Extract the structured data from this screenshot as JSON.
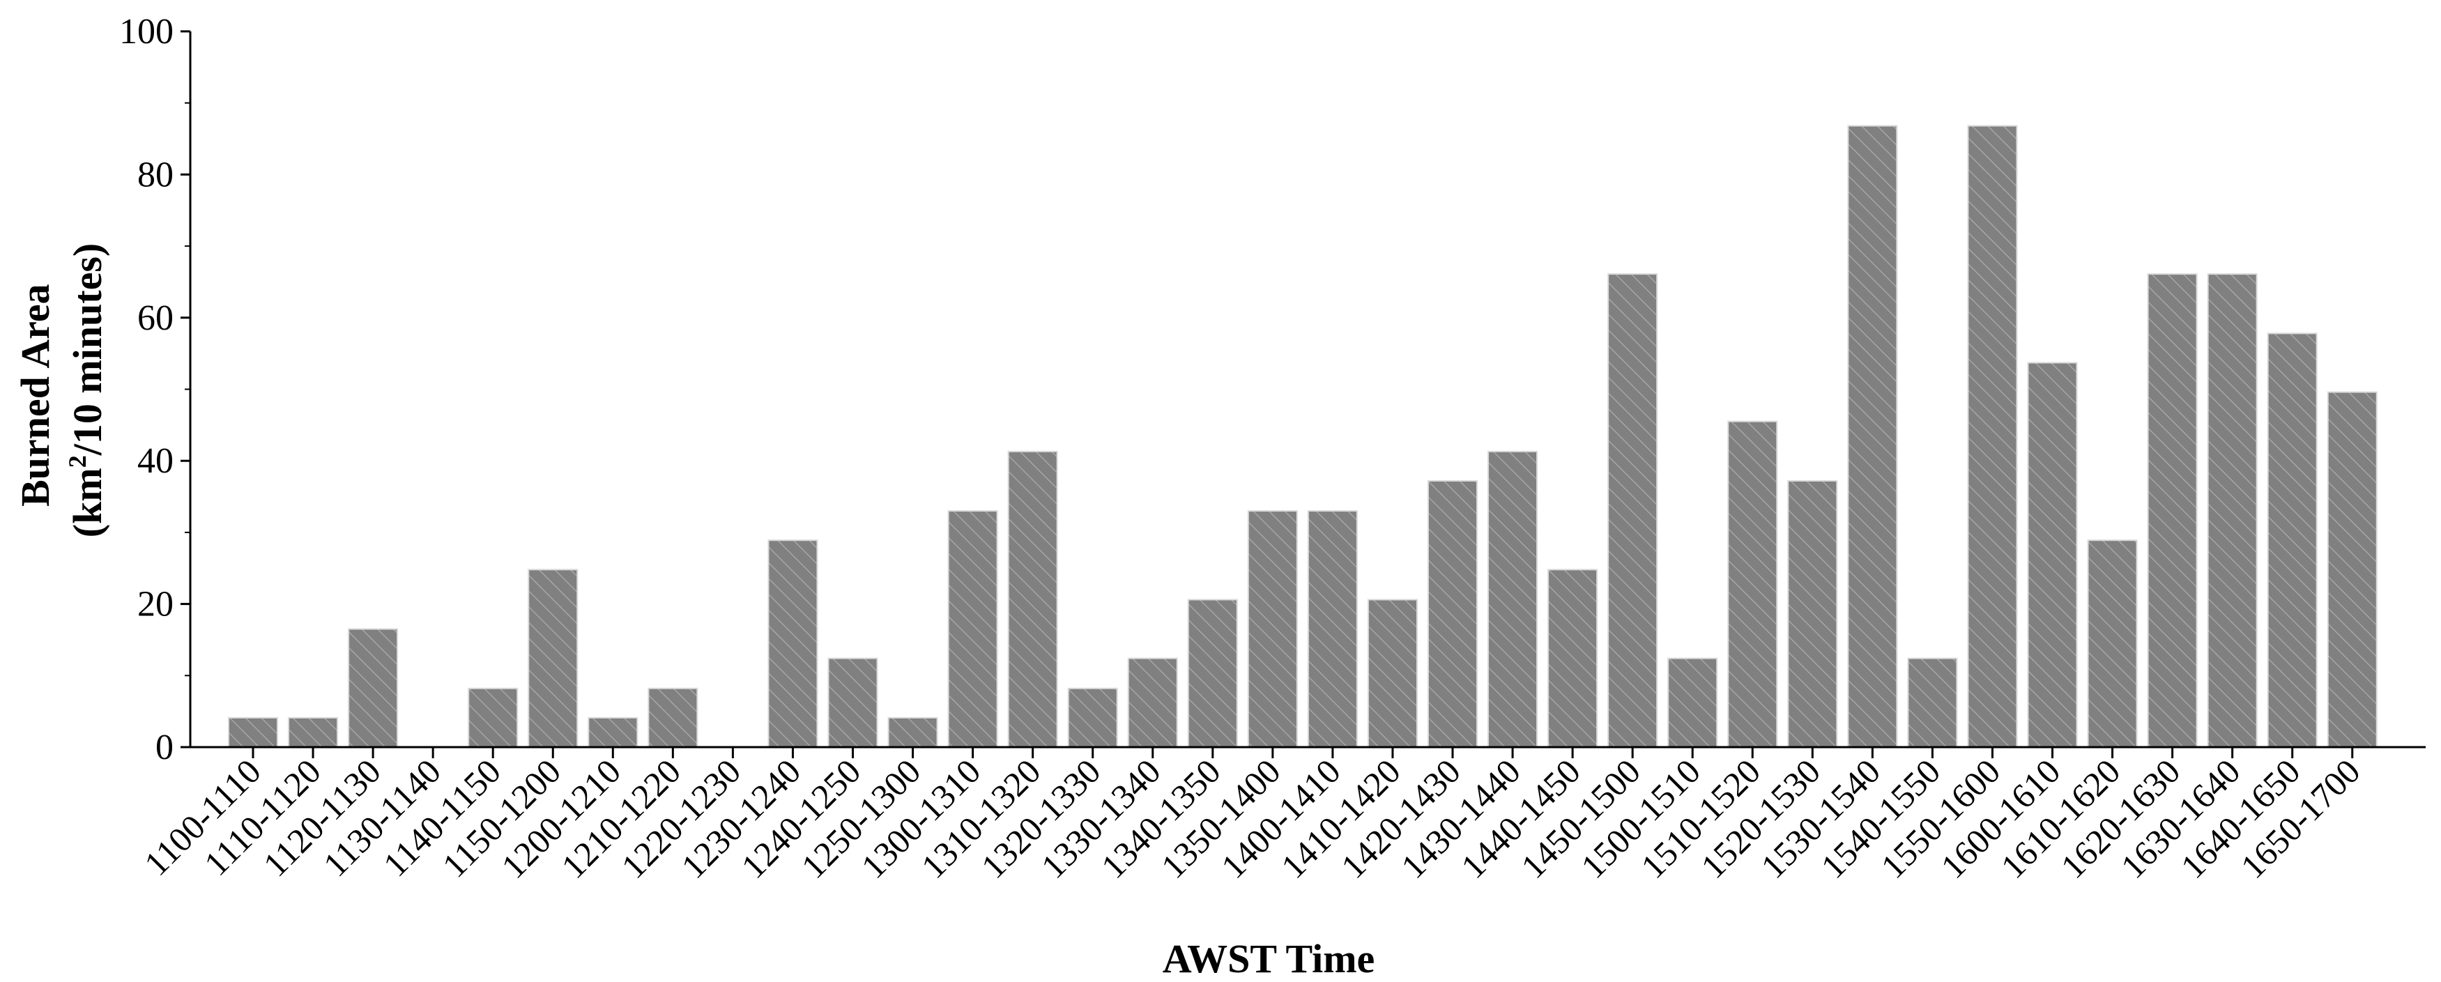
{
  "chart_data": {
    "type": "bar",
    "xlabel": "AWST Time",
    "ylabel_line1": "Burned Area",
    "ylabel_line2_prefix": "(km",
    "ylabel_line2_sup": "2",
    "ylabel_line2_suffix": "/10 minutes)",
    "ylim": [
      0,
      100
    ],
    "yticks": [
      "0",
      "20",
      "40",
      "60",
      "80",
      "100"
    ],
    "grid": false,
    "bar_color": "#808080",
    "categories": [
      "1100-1110",
      "1110-1120",
      "1120-1130",
      "1130-1140",
      "1140-1150",
      "1150-1200",
      "1200-1210",
      "1210-1220",
      "1220-1230",
      "1230-1240",
      "1240-1250",
      "1250-1300",
      "1300-1310",
      "1310-1320",
      "1320-1330",
      "1330-1340",
      "1340-1350",
      "1350-1400",
      "1400-1410",
      "1410-1420",
      "1420-1430",
      "1430-1440",
      "1440-1450",
      "1450-1500",
      "1500-1510",
      "1510-1520",
      "1520-1530",
      "1530-1540",
      "1540-1550",
      "1550-1600",
      "1600-1610",
      "1610-1620",
      "1620-1630",
      "1630-1640",
      "1640-1650",
      "1650-1700"
    ],
    "values": [
      4.1,
      4.1,
      16.5,
      0,
      8.2,
      24.8,
      4.1,
      8.2,
      0,
      28.9,
      12.4,
      4.1,
      33.0,
      41.3,
      8.2,
      12.4,
      20.6,
      33.0,
      33.0,
      20.6,
      37.2,
      41.3,
      24.8,
      66.1,
      12.4,
      45.5,
      37.2,
      86.8,
      12.4,
      86.8,
      53.7,
      28.9,
      66.1,
      66.1,
      57.8,
      49.6
    ]
  }
}
